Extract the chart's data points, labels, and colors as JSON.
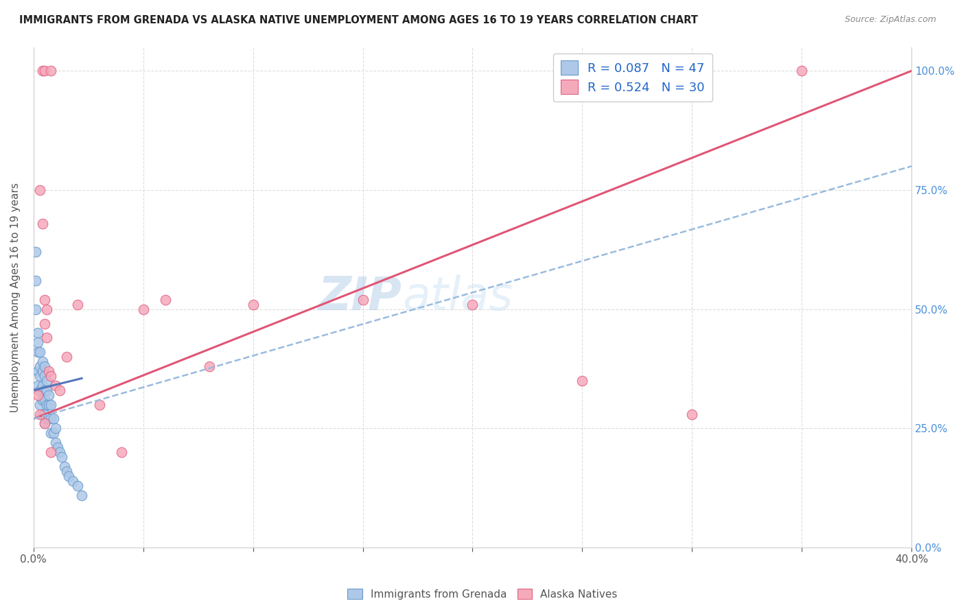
{
  "title": "IMMIGRANTS FROM GRENADA VS ALASKA NATIVE UNEMPLOYMENT AMONG AGES 16 TO 19 YEARS CORRELATION CHART",
  "source": "Source: ZipAtlas.com",
  "ylabel": "Unemployment Among Ages 16 to 19 years",
  "xlim": [
    0.0,
    0.4
  ],
  "ylim": [
    0.0,
    1.05
  ],
  "xticks": [
    0.0,
    0.05,
    0.1,
    0.15,
    0.2,
    0.25,
    0.3,
    0.35,
    0.4
  ],
  "xticklabels": [
    "0.0%",
    "",
    "",
    "",
    "",
    "",
    "",
    "",
    "40.0%"
  ],
  "yticks_right": [
    0.0,
    0.25,
    0.5,
    0.75,
    1.0
  ],
  "ytick_right_labels": [
    "0.0%",
    "25.0%",
    "50.0%",
    "75.0%",
    "100.0%"
  ],
  "legend_R1": "R = 0.087",
  "legend_N1": "N = 47",
  "legend_R2": "R = 0.524",
  "legend_N2": "N = 30",
  "blue_fill": "#aec8e8",
  "blue_edge": "#6699cc",
  "pink_fill": "#f5aabb",
  "pink_edge": "#e06080",
  "blue_line_color": "#5577bb",
  "pink_line_color": "#e05575",
  "dashed_line_color": "#99bbdd",
  "watermark_color": "#d0e4f4",
  "pink_line_x0": 0.0,
  "pink_line_y0": 0.27,
  "pink_line_x1": 0.4,
  "pink_line_y1": 1.0,
  "dashed_line_x0": 0.0,
  "dashed_line_y0": 0.27,
  "dashed_line_x1": 0.4,
  "dashed_line_y1": 0.8,
  "blue_line_x0": 0.0,
  "blue_line_y0": 0.33,
  "blue_line_x1": 0.022,
  "blue_line_y1": 0.355,
  "blue_x": [
    0.001,
    0.001,
    0.001,
    0.002,
    0.002,
    0.002,
    0.002,
    0.002,
    0.003,
    0.003,
    0.003,
    0.003,
    0.003,
    0.004,
    0.004,
    0.004,
    0.004,
    0.004,
    0.005,
    0.005,
    0.005,
    0.005,
    0.005,
    0.005,
    0.006,
    0.006,
    0.006,
    0.006,
    0.007,
    0.007,
    0.007,
    0.008,
    0.008,
    0.008,
    0.009,
    0.009,
    0.01,
    0.01,
    0.011,
    0.012,
    0.013,
    0.014,
    0.015,
    0.016,
    0.018,
    0.02,
    0.022
  ],
  "blue_y": [
    0.62,
    0.56,
    0.5,
    0.45,
    0.43,
    0.41,
    0.37,
    0.34,
    0.41,
    0.38,
    0.36,
    0.33,
    0.3,
    0.39,
    0.37,
    0.34,
    0.31,
    0.28,
    0.38,
    0.36,
    0.33,
    0.31,
    0.28,
    0.26,
    0.35,
    0.33,
    0.3,
    0.27,
    0.32,
    0.3,
    0.27,
    0.3,
    0.27,
    0.24,
    0.27,
    0.24,
    0.25,
    0.22,
    0.21,
    0.2,
    0.19,
    0.17,
    0.16,
    0.15,
    0.14,
    0.13,
    0.11
  ],
  "pink_x": [
    0.004,
    0.005,
    0.008,
    0.003,
    0.004,
    0.005,
    0.005,
    0.006,
    0.006,
    0.007,
    0.008,
    0.01,
    0.012,
    0.015,
    0.02,
    0.03,
    0.04,
    0.05,
    0.06,
    0.08,
    0.1,
    0.15,
    0.2,
    0.25,
    0.3,
    0.35,
    0.002,
    0.003,
    0.005,
    0.008
  ],
  "pink_y": [
    1.0,
    1.0,
    1.0,
    0.75,
    0.68,
    0.52,
    0.47,
    0.5,
    0.44,
    0.37,
    0.36,
    0.34,
    0.33,
    0.4,
    0.51,
    0.3,
    0.2,
    0.5,
    0.52,
    0.38,
    0.51,
    0.52,
    0.51,
    0.35,
    0.28,
    1.0,
    0.32,
    0.28,
    0.26,
    0.2
  ]
}
